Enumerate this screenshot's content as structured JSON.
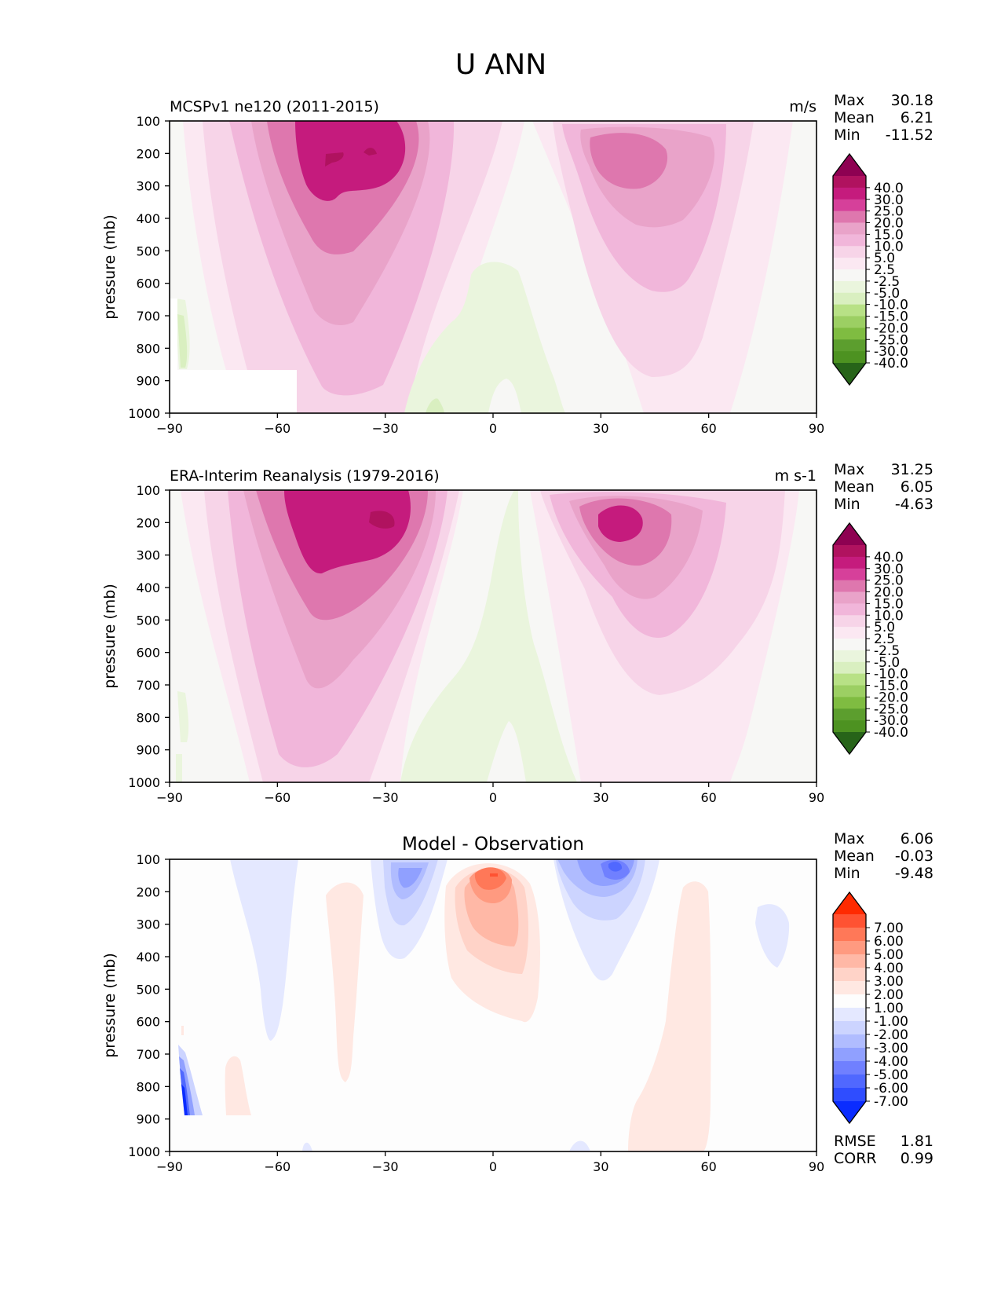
{
  "figure": {
    "title": "U ANN"
  },
  "chart_data": [
    {
      "type": "heatmap",
      "title_left": "MCSPv1 ne120 (2011-2015)",
      "title_center": "",
      "units": "m/s",
      "ylabel": "pressure (mb)",
      "xlabel": "",
      "xlim": [
        -90,
        90
      ],
      "ylim": [
        1000,
        100
      ],
      "x_ticks": [
        "−90",
        "−60",
        "−30",
        "0",
        "30",
        "60",
        "90"
      ],
      "y_ticks": [
        "100",
        "200",
        "300",
        "400",
        "500",
        "600",
        "700",
        "800",
        "900",
        "1000"
      ],
      "stats": [
        {
          "label": "Max",
          "value": "30.18"
        },
        {
          "label": "Mean",
          "value": "6.21"
        },
        {
          "label": "Min",
          "value": "-11.52"
        }
      ],
      "colorbar": {
        "levels": [
          "40.0",
          "30.0",
          "25.0",
          "20.0",
          "15.0",
          "10.0",
          "5.0",
          "2.5",
          "-2.5",
          "-5.0",
          "-10.0",
          "-15.0",
          "-20.0",
          "-25.0",
          "-30.0",
          "-40.0"
        ],
        "colors": [
          "#8e0152",
          "#b0125f",
          "#c51b7d",
          "#d6409a",
          "#de77ae",
          "#e9a3c9",
          "#f1b6da",
          "#f7d4e8",
          "#fbe8f2",
          "#f7f7f5",
          "#eaf5dd",
          "#d9efc0",
          "#b8e186",
          "#9ccf63",
          "#7fbc41",
          "#5c9e2e",
          "#4d9221",
          "#276419"
        ]
      },
      "jets": [
        {
          "lat": -40,
          "p": 210,
          "max": 30.2
        },
        {
          "lat": 38,
          "p": 220,
          "max": 23.5
        }
      ]
    },
    {
      "type": "heatmap",
      "title_left": "ERA-Interim Reanalysis (1979-2016)",
      "title_center": "",
      "units": "m s-1",
      "ylabel": "pressure (mb)",
      "xlabel": "",
      "xlim": [
        -90,
        90
      ],
      "ylim": [
        1000,
        100
      ],
      "x_ticks": [
        "−90",
        "−60",
        "−30",
        "0",
        "30",
        "60",
        "90"
      ],
      "y_ticks": [
        "100",
        "200",
        "300",
        "400",
        "500",
        "600",
        "700",
        "800",
        "900",
        "1000"
      ],
      "stats": [
        {
          "label": "Max",
          "value": "31.25"
        },
        {
          "label": "Mean",
          "value": "6.05"
        },
        {
          "label": "Min",
          "value": "-4.63"
        }
      ],
      "colorbar": {
        "levels": [
          "40.0",
          "30.0",
          "25.0",
          "20.0",
          "15.0",
          "10.0",
          "5.0",
          "2.5",
          "-2.5",
          "-5.0",
          "-10.0",
          "-15.0",
          "-20.0",
          "-25.0",
          "-30.0",
          "-40.0"
        ],
        "colors": [
          "#8e0152",
          "#b0125f",
          "#c51b7d",
          "#d6409a",
          "#de77ae",
          "#e9a3c9",
          "#f1b6da",
          "#f7d4e8",
          "#fbe8f2",
          "#f7f7f5",
          "#eaf5dd",
          "#d9efc0",
          "#b8e186",
          "#9ccf63",
          "#7fbc41",
          "#5c9e2e",
          "#4d9221",
          "#276419"
        ]
      },
      "jets": [
        {
          "lat": -40,
          "p": 220,
          "max": 31.3
        },
        {
          "lat": 32,
          "p": 200,
          "max": 28.0
        }
      ]
    },
    {
      "type": "heatmap",
      "title_left": "",
      "title_center": "Model - Observation",
      "units": "",
      "ylabel": "pressure (mb)",
      "xlabel": "",
      "xlim": [
        -90,
        90
      ],
      "ylim": [
        1000,
        100
      ],
      "x_ticks": [
        "−90",
        "−60",
        "−30",
        "0",
        "30",
        "60",
        "90"
      ],
      "y_ticks": [
        "100",
        "200",
        "300",
        "400",
        "500",
        "600",
        "700",
        "800",
        "900",
        "1000"
      ],
      "stats": [
        {
          "label": "Max",
          "value": "6.06"
        },
        {
          "label": "Mean",
          "value": "-0.03"
        },
        {
          "label": "Min",
          "value": "-9.48"
        }
      ],
      "colorbar": {
        "levels": [
          "7.00",
          "6.00",
          "5.00",
          "4.00",
          "3.00",
          "2.00",
          "1.00",
          "-1.00",
          "-2.00",
          "-3.00",
          "-4.00",
          "-5.00",
          "-6.00",
          "-7.00"
        ],
        "colors": [
          "#ff2a00",
          "#ff5232",
          "#ff7858",
          "#ff9a80",
          "#ffb8a6",
          "#ffd3c8",
          "#ffe8e2",
          "#fdfdfd",
          "#e4e8ff",
          "#ccd4ff",
          "#b0bcff",
          "#90a0ff",
          "#7080ff",
          "#5068ff",
          "#2f4dff",
          "#0a2cff"
        ]
      },
      "metrics": [
        {
          "label": "RMSE",
          "value": "1.81"
        },
        {
          "label": "CORR",
          "value": "0.99"
        }
      ]
    }
  ]
}
